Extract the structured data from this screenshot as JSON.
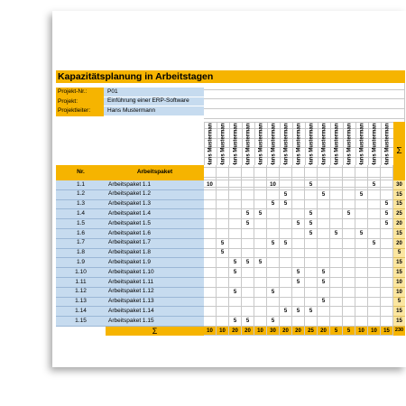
{
  "title": "Kapazitätsplanung in Arbeitstagen",
  "project": [
    {
      "label": "Projekt-Nr.:",
      "value": "P01"
    },
    {
      "label": "Projekt:",
      "value": "Einführung einer ERP-Software"
    },
    {
      "label": "Projektleiter:",
      "value": "Hans Mustermann"
    }
  ],
  "table": {
    "header": {
      "nr": "Nr.",
      "package": "Arbeitspaket",
      "sum": "Σ"
    },
    "people": [
      "Hans Mustermann",
      "Hans Mustermann",
      "Hans Mustermann",
      "Hans Mustermann",
      "Hans Mustermann",
      "Hans Mustermann",
      "Hans Mustermann",
      "Hans Mustermann",
      "Hans Mustermann",
      "Hans Mustermann",
      "Hans Mustermann",
      "Hans Mustermann",
      "Hans Mustermann",
      "Hans Mustermann",
      "Hans Mustermann"
    ],
    "rows": [
      {
        "nr": "1.1",
        "name": "Arbeitspaket 1.1",
        "values": [
          10,
          null,
          null,
          null,
          null,
          10,
          null,
          null,
          5,
          null,
          null,
          null,
          null,
          5,
          null
        ],
        "sum": 30
      },
      {
        "nr": "1.2",
        "name": "Arbeitspaket 1.2",
        "values": [
          null,
          null,
          null,
          null,
          null,
          null,
          5,
          null,
          null,
          5,
          null,
          null,
          5,
          null,
          null
        ],
        "sum": 15
      },
      {
        "nr": "1.3",
        "name": "Arbeitspaket 1.3",
        "values": [
          null,
          null,
          null,
          null,
          null,
          5,
          5,
          null,
          null,
          null,
          null,
          null,
          null,
          null,
          5
        ],
        "sum": 15
      },
      {
        "nr": "1.4",
        "name": "Arbeitspaket 1.4",
        "values": [
          null,
          null,
          null,
          5,
          5,
          null,
          null,
          null,
          5,
          null,
          null,
          5,
          null,
          null,
          5
        ],
        "sum": 25
      },
      {
        "nr": "1.5",
        "name": "Arbeitspaket 1.5",
        "values": [
          null,
          null,
          null,
          5,
          null,
          null,
          null,
          5,
          5,
          null,
          null,
          null,
          null,
          null,
          5
        ],
        "sum": 20
      },
      {
        "nr": "1.6",
        "name": "Arbeitspaket 1.6",
        "values": [
          null,
          null,
          null,
          null,
          null,
          null,
          null,
          null,
          5,
          null,
          5,
          null,
          5,
          null,
          null
        ],
        "sum": 15
      },
      {
        "nr": "1.7",
        "name": "Arbeitspaket 1.7",
        "values": [
          null,
          5,
          null,
          null,
          null,
          5,
          5,
          null,
          null,
          null,
          null,
          null,
          null,
          5,
          null
        ],
        "sum": 20
      },
      {
        "nr": "1.8",
        "name": "Arbeitspaket 1.8",
        "values": [
          null,
          5,
          null,
          null,
          null,
          null,
          null,
          null,
          null,
          null,
          null,
          null,
          null,
          null,
          null
        ],
        "sum": 5
      },
      {
        "nr": "1.9",
        "name": "Arbeitspaket 1.9",
        "values": [
          null,
          null,
          5,
          5,
          5,
          null,
          null,
          null,
          null,
          null,
          null,
          null,
          null,
          null,
          null
        ],
        "sum": 15
      },
      {
        "nr": "1.10",
        "name": "Arbeitspaket 1.10",
        "values": [
          null,
          null,
          5,
          null,
          null,
          null,
          null,
          5,
          null,
          5,
          null,
          null,
          null,
          null,
          null
        ],
        "sum": 15
      },
      {
        "nr": "1.11",
        "name": "Arbeitspaket 1.11",
        "values": [
          null,
          null,
          null,
          null,
          null,
          null,
          null,
          5,
          null,
          5,
          null,
          null,
          null,
          null,
          null
        ],
        "sum": 10
      },
      {
        "nr": "1.12",
        "name": "Arbeitspaket 1.12",
        "values": [
          null,
          null,
          5,
          null,
          null,
          5,
          null,
          null,
          null,
          null,
          null,
          null,
          null,
          null,
          null
        ],
        "sum": 10
      },
      {
        "nr": "1.13",
        "name": "Arbeitspaket 1.13",
        "values": [
          null,
          null,
          null,
          null,
          null,
          null,
          null,
          null,
          null,
          5,
          null,
          null,
          null,
          null,
          null
        ],
        "sum": 5
      },
      {
        "nr": "1.14",
        "name": "Arbeitspaket 1.14",
        "values": [
          null,
          null,
          null,
          null,
          null,
          null,
          5,
          5,
          5,
          null,
          null,
          null,
          null,
          null,
          null
        ],
        "sum": 15
      },
      {
        "nr": "1.15",
        "name": "Arbeitspaket 1.15",
        "values": [
          null,
          null,
          5,
          5,
          null,
          5,
          null,
          null,
          null,
          null,
          null,
          null,
          null,
          null,
          null
        ],
        "sum": 15
      }
    ],
    "totals": {
      "label": "Σ",
      "values": [
        10,
        10,
        20,
        20,
        10,
        30,
        20,
        20,
        25,
        20,
        5,
        5,
        10,
        10,
        15
      ],
      "sum": 230
    }
  }
}
